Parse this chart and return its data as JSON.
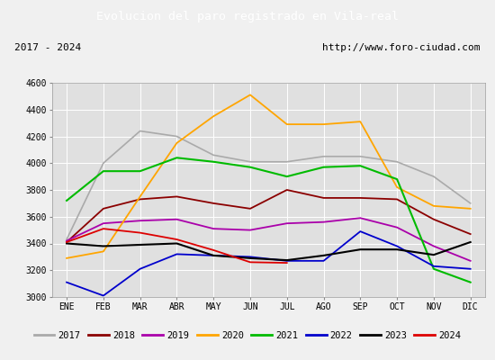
{
  "title": "Evolucion del paro registrado en Vila-real",
  "subtitle_left": "2017 - 2024",
  "subtitle_right": "http://www.foro-ciudad.com",
  "months": [
    "ENE",
    "FEB",
    "MAR",
    "ABR",
    "MAY",
    "JUN",
    "JUL",
    "AGO",
    "SEP",
    "OCT",
    "NOV",
    "DIC"
  ],
  "ylim": [
    3000,
    4600
  ],
  "yticks": [
    3000,
    3200,
    3400,
    3600,
    3800,
    4000,
    4200,
    4400,
    4600
  ],
  "series": {
    "2017": {
      "color": "#aaaaaa",
      "linewidth": 1.2,
      "data": [
        3430,
        4000,
        4240,
        4200,
        4060,
        4010,
        4010,
        4050,
        4050,
        4010,
        3900,
        3700
      ]
    },
    "2018": {
      "color": "#8b0000",
      "linewidth": 1.3,
      "data": [
        3410,
        3660,
        3730,
        3750,
        3700,
        3660,
        3800,
        3740,
        3740,
        3730,
        3580,
        3470
      ]
    },
    "2019": {
      "color": "#aa00aa",
      "linewidth": 1.3,
      "data": [
        3420,
        3550,
        3570,
        3580,
        3510,
        3500,
        3550,
        3560,
        3590,
        3520,
        3380,
        3270
      ]
    },
    "2020": {
      "color": "#ffa500",
      "linewidth": 1.3,
      "data": [
        3290,
        3340,
        3750,
        4150,
        4350,
        4510,
        4290,
        4290,
        4310,
        3820,
        3680,
        3660
      ]
    },
    "2021": {
      "color": "#00bb00",
      "linewidth": 1.5,
      "data": [
        3720,
        3940,
        3940,
        4040,
        4010,
        3970,
        3900,
        3970,
        3980,
        3880,
        3210,
        3110
      ]
    },
    "2022": {
      "color": "#0000cc",
      "linewidth": 1.3,
      "data": [
        3110,
        3010,
        3210,
        3320,
        3310,
        3300,
        3270,
        3270,
        3490,
        3380,
        3230,
        3210
      ]
    },
    "2023": {
      "color": "#000000",
      "linewidth": 1.5,
      "data": [
        3400,
        3380,
        3390,
        3400,
        3310,
        3290,
        3275,
        3310,
        3355,
        3355,
        3315,
        3410
      ]
    },
    "2024": {
      "color": "#dd0000",
      "linewidth": 1.3,
      "data": [
        3410,
        3510,
        3480,
        3430,
        3350,
        3260,
        3255,
        null,
        null,
        null,
        null,
        null
      ]
    }
  },
  "background_color": "#f0f0f0",
  "plot_bg_color": "#e0e0e0",
  "title_bg_color": "#4472c4",
  "title_color": "white",
  "grid_color": "white",
  "subtitle_bg_color": "#d4d4d4"
}
